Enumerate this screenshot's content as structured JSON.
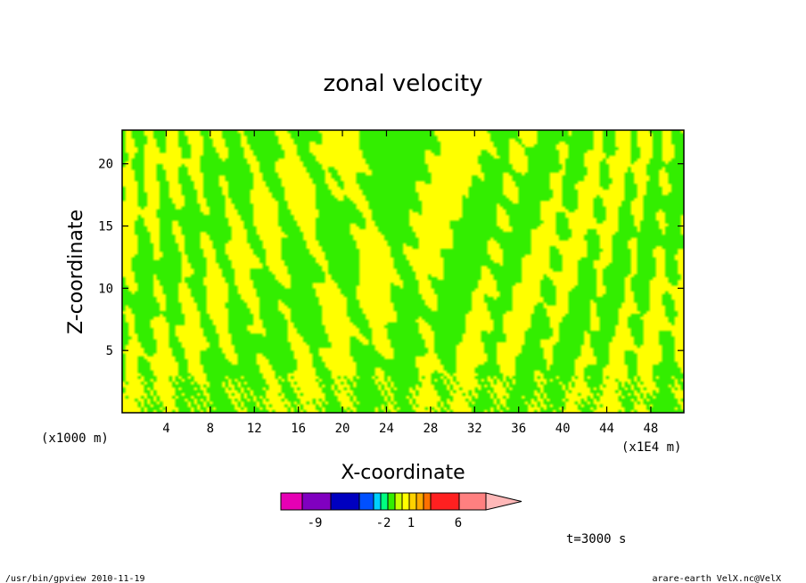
{
  "chart_data": {
    "type": "heatmap",
    "title": "zonal velocity",
    "xlabel": "X-coordinate",
    "ylabel": "Z-coordinate",
    "x_scale_label": "(x1E4 m)",
    "y_scale_label": "(x1000 m)",
    "x_ticks": [
      4,
      8,
      12,
      16,
      20,
      24,
      28,
      32,
      36,
      40,
      44,
      48
    ],
    "y_ticks": [
      5,
      10,
      15,
      20
    ],
    "xlim": [
      0,
      51
    ],
    "ylim": [
      0,
      22.7
    ],
    "colorbar": {
      "colors": [
        "#e600b4",
        "#8000c0",
        "#0000c0",
        "#0050ff",
        "#00d0ff",
        "#00ff80",
        "#33ee00",
        "#c8ff00",
        "#ffff00",
        "#ffd200",
        "#ffaa00",
        "#ff7000",
        "#ff2020",
        "#ff8080",
        "#ffb8b8"
      ],
      "tick_labels": [
        "-9",
        "-2",
        "1",
        "6"
      ]
    },
    "time_label": "t=3000 s",
    "field_colors": {
      "positive": "#ffff00",
      "negative": "#33ee00",
      "contour": "#000000"
    }
  },
  "footer": {
    "left": "/usr/bin/gpview  2010-11-19",
    "right": "arare-earth_VelX.nc@VelX"
  }
}
